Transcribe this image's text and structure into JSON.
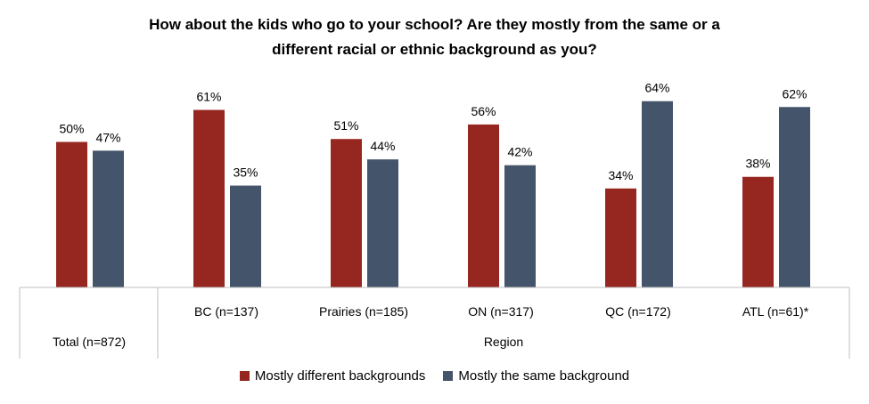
{
  "chart_data": {
    "type": "bar",
    "title_lines": [
      "How about the kids who go to your school? Are they mostly from the same or a",
      "different racial or ethnic background as you?"
    ],
    "categories": [
      "Total (n=872)",
      "BC (n=137)",
      "Prairies (n=185)",
      "ON (n=317)",
      "QC (n=172)",
      "ATL (n=61)*"
    ],
    "group_label": "Region",
    "series": [
      {
        "name": "Mostly different backgrounds",
        "color": "#962620",
        "values": [
          50,
          61,
          51,
          56,
          34,
          38
        ],
        "labels": [
          "50%",
          "61%",
          "51%",
          "56%",
          "34%",
          "38%"
        ]
      },
      {
        "name": "Mostly the same background",
        "color": "#44546A",
        "values": [
          47,
          35,
          44,
          42,
          64,
          62
        ],
        "labels": [
          "47%",
          "35%",
          "44%",
          "42%",
          "64%",
          "62%"
        ]
      }
    ],
    "ylim": [
      0,
      100
    ],
    "grid": false,
    "legend_position": "bottom"
  }
}
